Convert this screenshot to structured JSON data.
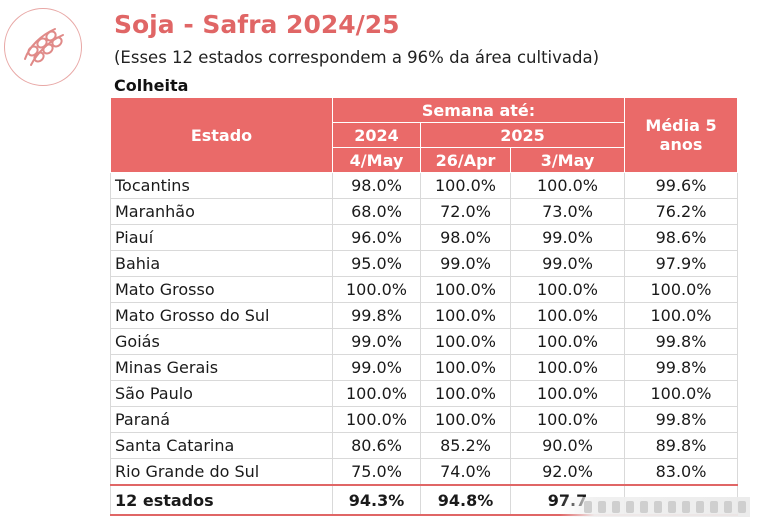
{
  "title": "Soja - Safra 2024/25",
  "subtitle": "(Esses 12 estados correspondem a 96% da área cultivada)",
  "section": "Colheita",
  "table": {
    "header": {
      "estado": "Estado",
      "semana": "Semana até:",
      "media": "Média 5 anos",
      "year_prev": "2024",
      "year_curr": "2025",
      "dates": [
        "4/May",
        "26/Apr",
        "3/May"
      ]
    },
    "rows": [
      {
        "estado": "Tocantins",
        "v2024": "98.0%",
        "v26apr": "100.0%",
        "v3may": "100.0%",
        "media": "99.6%"
      },
      {
        "estado": "Maranhão",
        "v2024": "68.0%",
        "v26apr": "72.0%",
        "v3may": "73.0%",
        "media": "76.2%"
      },
      {
        "estado": "Piauí",
        "v2024": "96.0%",
        "v26apr": "98.0%",
        "v3may": "99.0%",
        "media": "98.6%"
      },
      {
        "estado": "Bahia",
        "v2024": "95.0%",
        "v26apr": "99.0%",
        "v3may": "99.0%",
        "media": "97.9%"
      },
      {
        "estado": "Mato Grosso",
        "v2024": "100.0%",
        "v26apr": "100.0%",
        "v3may": "100.0%",
        "media": "100.0%"
      },
      {
        "estado": "Mato Grosso do Sul",
        "v2024": "99.8%",
        "v26apr": "100.0%",
        "v3may": "100.0%",
        "media": "100.0%"
      },
      {
        "estado": "Goiás",
        "v2024": "99.0%",
        "v26apr": "100.0%",
        "v3may": "100.0%",
        "media": "99.8%"
      },
      {
        "estado": "Minas Gerais",
        "v2024": "99.0%",
        "v26apr": "100.0%",
        "v3may": "100.0%",
        "media": "99.8%"
      },
      {
        "estado": "São Paulo",
        "v2024": "100.0%",
        "v26apr": "100.0%",
        "v3may": "100.0%",
        "media": "100.0%"
      },
      {
        "estado": "Paraná",
        "v2024": "100.0%",
        "v26apr": "100.0%",
        "v3may": "100.0%",
        "media": "99.8%"
      },
      {
        "estado": "Santa Catarina",
        "v2024": "80.6%",
        "v26apr": "85.2%",
        "v3may": "90.0%",
        "media": "89.8%"
      },
      {
        "estado": "Rio Grande do Sul",
        "v2024": "75.0%",
        "v26apr": "74.0%",
        "v3may": "92.0%",
        "media": "83.0%"
      }
    ],
    "total": {
      "estado": "12 estados",
      "v2024": "94.3%",
      "v26apr": "94.8%",
      "v3may": "97.7"
    }
  },
  "colors": {
    "accent": "#e06666",
    "header_bg": "#ea6a69"
  },
  "icons": {
    "logo": "soybean-pod-icon"
  }
}
